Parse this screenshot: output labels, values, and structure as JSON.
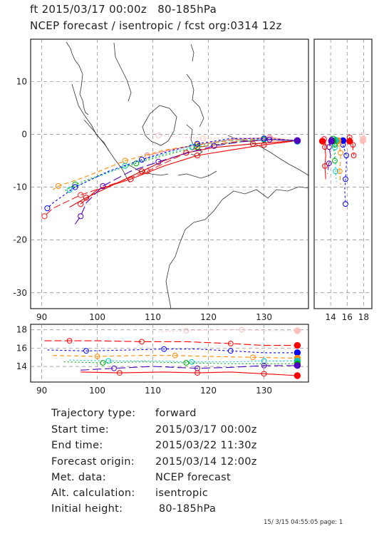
{
  "header": {
    "line1": "ft 2015/03/17 00:00z   80-185hPa",
    "line2": "NCEP forecast / isentropic / fcst org:0314 12z"
  },
  "info": [
    {
      "label": "Trajectory type:",
      "value": "forward"
    },
    {
      "label": "Start time:",
      "value": "2015/03/17 00:00z"
    },
    {
      "label": "End time:",
      "value": "2015/03/22 11:30z"
    },
    {
      "label": "Forecast origin:",
      "value": "2015/03/14 12:00z"
    },
    {
      "label": "Met. data:",
      "value": "NCEP forecast"
    },
    {
      "label": "Alt. calculation:",
      "value": "isentropic"
    },
    {
      "label": "Initial height:",
      "value": " 80-185hPa"
    }
  ],
  "footer": "15/ 3/15 04:55:05 page: 1",
  "chart_data": [
    {
      "type": "line",
      "panel": "map",
      "xlim": [
        88,
        138
      ],
      "ylim": [
        -33,
        18
      ],
      "x_ticks": [
        "90",
        "100",
        "110",
        "120",
        "130"
      ],
      "y_ticks": [
        "10",
        "0",
        "-10",
        "-20",
        "-30"
      ],
      "grid": true,
      "series": [
        {
          "color": "#ffbfbf",
          "dash": "2,3",
          "points": [
            [
              136,
              -1.2
            ],
            [
              131,
              -0.8
            ],
            [
              125,
              -0.6
            ],
            [
              119,
              -0.8
            ],
            [
              113,
              -0.4
            ],
            [
              111,
              -0.2
            ]
          ]
        },
        {
          "color": "#ff8080",
          "dash": "",
          "points": [
            [
              136,
              -1.3
            ],
            [
              131,
              -0.6
            ],
            [
              124,
              -1.0
            ],
            [
              118,
              -2.0
            ],
            [
              113,
              -3.0
            ],
            [
              109,
              -4.0
            ]
          ]
        },
        {
          "color": "#ff0000",
          "dash": "",
          "points": [
            [
              136,
              -1.2
            ],
            [
              130,
              -2.0
            ],
            [
              124,
              -3.0
            ],
            [
              118,
              -4.0
            ],
            [
              112,
              -6.0
            ],
            [
              106,
              -8.5
            ],
            [
              100,
              -10.5
            ],
            [
              97,
              -13.2
            ]
          ]
        },
        {
          "color": "#e00000",
          "dash": "",
          "points": [
            [
              136,
              -1.2
            ],
            [
              128,
              -1.8
            ],
            [
              121,
              -2.5
            ],
            [
              116,
              -3.5
            ],
            [
              112,
              -5.0
            ],
            [
              108,
              -7.0
            ],
            [
              103,
              -9.5
            ],
            [
              98,
              -12.0
            ],
            [
              95,
              -13.8
            ]
          ]
        },
        {
          "color": "#ff2020",
          "dash": "10,4",
          "points": [
            [
              136,
              -1.2
            ],
            [
              130,
              -1.0
            ],
            [
              124,
              -1.5
            ],
            [
              118,
              -2.5
            ],
            [
              114,
              -4.5
            ],
            [
              109,
              -7.0
            ],
            [
              104,
              -9.0
            ],
            [
              97,
              -11.5
            ],
            [
              92,
              -14.0
            ],
            [
              90.5,
              -15.5
            ]
          ]
        },
        {
          "color": "#ff8c00",
          "dash": "6,4",
          "points": [
            [
              136,
              -1.3
            ],
            [
              130,
              -0.8
            ],
            [
              124,
              -1.2
            ],
            [
              118,
              -2.0
            ],
            [
              112,
              -3.0
            ],
            [
              105,
              -5.0
            ],
            [
              98,
              -8.0
            ],
            [
              93,
              -9.8
            ],
            [
              92,
              -10.5
            ]
          ]
        },
        {
          "color": "#00aa00",
          "dash": "2,3",
          "points": [
            [
              136,
              -1.3
            ],
            [
              130,
              -1.0
            ],
            [
              124,
              -1.6
            ],
            [
              118,
              -2.4
            ],
            [
              112,
              -4.0
            ],
            [
              107,
              -5.5
            ],
            [
              101,
              -7.5
            ],
            [
              96,
              -9.5
            ],
            [
              94,
              -10.8
            ]
          ]
        },
        {
          "color": "#00c8c8",
          "dash": "2,3",
          "points": [
            [
              136,
              -1.3
            ],
            [
              130,
              -0.9
            ],
            [
              123,
              -1.2
            ],
            [
              117,
              -2.4
            ],
            [
              111,
              -4.0
            ],
            [
              105,
              -6.0
            ],
            [
              99,
              -8.5
            ],
            [
              95,
              -10.5
            ]
          ]
        },
        {
          "color": "#0000ff",
          "dash": "3,3",
          "points": [
            [
              136,
              -1.2
            ],
            [
              130,
              -0.8
            ],
            [
              124,
              -0.8
            ],
            [
              118,
              -1.8
            ],
            [
              113,
              -3.2
            ],
            [
              108,
              -4.8
            ],
            [
              102,
              -7.0
            ],
            [
              96,
              -10.0
            ],
            [
              92,
              -13.0
            ],
            [
              91,
              -14.0
            ]
          ]
        },
        {
          "color": "#5000c0",
          "dash": "12,5",
          "points": [
            [
              136,
              -1.2
            ],
            [
              131,
              -1.0
            ],
            [
              126,
              -1.4
            ],
            [
              121,
              -2.2
            ],
            [
              116,
              -3.6
            ],
            [
              111,
              -5.2
            ],
            [
              106,
              -7.0
            ],
            [
              101,
              -9.8
            ],
            [
              98,
              -13.0
            ],
            [
              97,
              -15.5
            ],
            [
              96,
              -17.0
            ]
          ]
        }
      ]
    },
    {
      "type": "line",
      "panel": "latitude-height",
      "ylim": [
        -33,
        18
      ],
      "xlim": [
        12,
        19
      ],
      "x_ticks": [
        "14",
        "16",
        "18"
      ],
      "grid": true
    },
    {
      "type": "line",
      "panel": "longitude-height",
      "xlim": [
        88,
        138
      ],
      "ylim": [
        12.3,
        18.6
      ],
      "x_ticks": [
        "90",
        "100",
        "110",
        "120",
        "130"
      ],
      "y_ticks": [
        "18",
        "16",
        "14"
      ],
      "grid": true,
      "series": [
        {
          "color": "#ffbfbf",
          "dash": "2,3",
          "points": [
            [
              111,
              17.8
            ],
            [
              116,
              17.9
            ],
            [
              121,
              18.0
            ],
            [
              126,
              18.0
            ],
            [
              131,
              17.9
            ],
            [
              136,
              17.9
            ]
          ]
        },
        {
          "color": "#ff0000",
          "dash": "10,4",
          "points": [
            [
              90.5,
              16.8
            ],
            [
              95,
              16.8
            ],
            [
              100,
              16.8
            ],
            [
              108,
              16.7
            ],
            [
              116,
              16.7
            ],
            [
              124,
              16.5
            ],
            [
              130,
              16.3
            ],
            [
              136,
              16.3
            ]
          ]
        },
        {
          "color": "#0000ff",
          "dash": "3,3",
          "points": [
            [
              91,
              15.8
            ],
            [
              98,
              15.7
            ],
            [
              106,
              15.8
            ],
            [
              112,
              15.9
            ],
            [
              118,
              15.9
            ],
            [
              124,
              15.7
            ],
            [
              130,
              15.5
            ],
            [
              136,
              15.5
            ]
          ]
        },
        {
          "color": "#ff8c00",
          "dash": "6,4",
          "points": [
            [
              92,
              15.2
            ],
            [
              100,
              15.1
            ],
            [
              108,
              15.2
            ],
            [
              114,
              15.2
            ],
            [
              120,
              15.1
            ],
            [
              128,
              15.0
            ],
            [
              136,
              14.9
            ]
          ]
        },
        {
          "color": "#00c8c8",
          "dash": "2,3",
          "points": [
            [
              95,
              14.7
            ],
            [
              102,
              14.6
            ],
            [
              110,
              14.6
            ],
            [
              117,
              14.5
            ],
            [
              124,
              14.5
            ],
            [
              130,
              14.6
            ],
            [
              136,
              14.6
            ]
          ]
        },
        {
          "color": "#00aa00",
          "dash": "2,3",
          "points": [
            [
              94,
              14.5
            ],
            [
              101,
              14.4
            ],
            [
              108,
              14.5
            ],
            [
              116,
              14.4
            ],
            [
              124,
              14.3
            ],
            [
              136,
              14.3
            ]
          ]
        },
        {
          "color": "#5000c0",
          "dash": "12,5",
          "points": [
            [
              97,
              13.6
            ],
            [
              103,
              13.8
            ],
            [
              110,
              14.0
            ],
            [
              118,
              13.8
            ],
            [
              124,
              13.9
            ],
            [
              130,
              14.1
            ],
            [
              136,
              14.1
            ]
          ]
        },
        {
          "color": "#ff0000",
          "dash": "",
          "points": [
            [
              97,
              13.4
            ],
            [
              104,
              13.3
            ],
            [
              112,
              13.4
            ],
            [
              118,
              13.3
            ],
            [
              124,
              13.4
            ],
            [
              130,
              13.2
            ],
            [
              136,
              13.0
            ]
          ]
        }
      ]
    }
  ]
}
